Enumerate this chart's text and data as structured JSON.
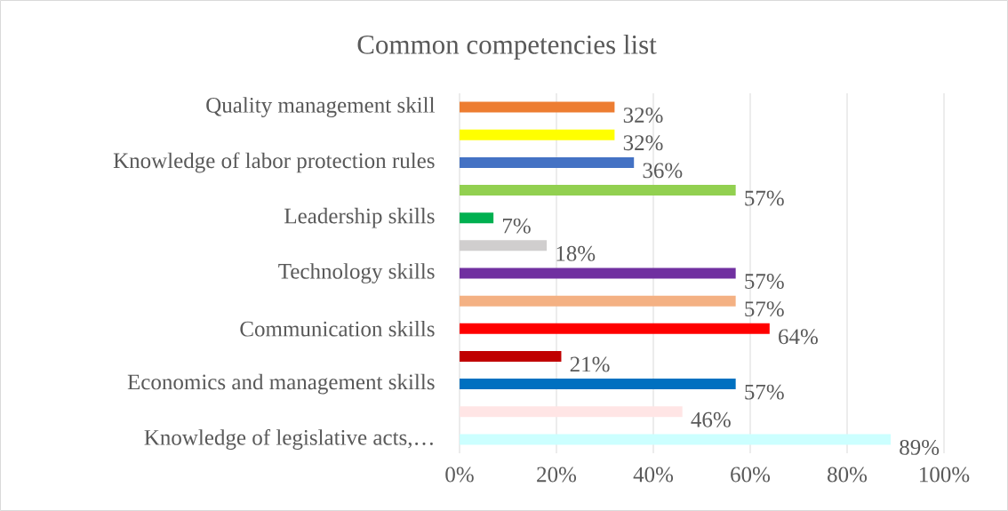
{
  "chart_data": {
    "type": "bar",
    "orientation": "horizontal",
    "title": "Common competencies list",
    "categories": [
      "Quality management skill",
      null,
      "Knowledge of labor protection rules",
      null,
      "Leadership skills",
      null,
      "Technology skills",
      null,
      "Communication skills",
      null,
      "Economics and management skills",
      null,
      "Knowledge of legislative acts,…"
    ],
    "values": [
      32,
      32,
      36,
      57,
      7,
      18,
      57,
      57,
      64,
      21,
      57,
      46,
      89
    ],
    "value_labels": [
      "32%",
      "32%",
      "36%",
      "57%",
      "7%",
      "18%",
      "57%",
      "57%",
      "64%",
      "21%",
      "57%",
      "46%",
      "89%"
    ],
    "colors": [
      "#ed7d31",
      "#ffff00",
      "#4472c4",
      "#92d050",
      "#00b050",
      "#d0cece",
      "#7030a0",
      "#f4b183",
      "#ff0000",
      "#c00000",
      "#0070c0",
      "#ffe5e5",
      "#ccffff"
    ],
    "xlim": [
      0,
      100
    ],
    "xticks": [
      {
        "value": 0,
        "label": "0%"
      },
      {
        "value": 20,
        "label": "20%"
      },
      {
        "value": 40,
        "label": "40%"
      },
      {
        "value": 60,
        "label": "60%"
      },
      {
        "value": 80,
        "label": "80%"
      },
      {
        "value": 100,
        "label": "100%"
      }
    ],
    "grid": "x"
  }
}
